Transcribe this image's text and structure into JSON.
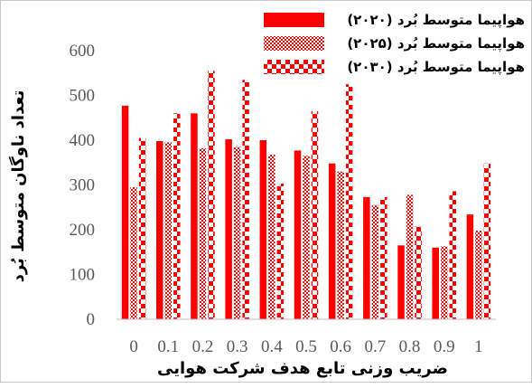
{
  "chart_data": {
    "type": "bar",
    "categories": [
      "0",
      "0.1",
      "0.2",
      "0.3",
      "0.4",
      "0.5",
      "0.6",
      "0.7",
      "0.8",
      "0.9",
      "1"
    ],
    "series": [
      {
        "name": "هواپیما متوسط بُرد (۲۰۲۰)",
        "pattern": "solid",
        "color": "#ff0000",
        "values": [
          477,
          398,
          460,
          402,
          400,
          377,
          348,
          273,
          165,
          160,
          234
        ]
      },
      {
        "name": "هواپیما متوسط بُرد (۲۰۲۵)",
        "pattern": "fine-checker",
        "color": "#ff0000",
        "values": [
          295,
          395,
          382,
          385,
          368,
          365,
          330,
          255,
          278,
          163,
          198
        ]
      },
      {
        "name": "هواپیما متوسط بُرد (۲۰۳۰)",
        "pattern": "large-checker",
        "color": "#ff0000",
        "values": [
          405,
          460,
          555,
          535,
          303,
          465,
          525,
          273,
          207,
          286,
          348
        ]
      }
    ],
    "xlabel": "ضریب وزنی تابع هدف شرکت هوایی",
    "ylabel": "تعداد ناوگان متوسط بُرد",
    "yticks": [
      "0",
      "100",
      "200",
      "300",
      "400",
      "500",
      "600"
    ],
    "ylim": [
      0,
      600
    ],
    "grid": false,
    "legend_position": "top-right"
  }
}
